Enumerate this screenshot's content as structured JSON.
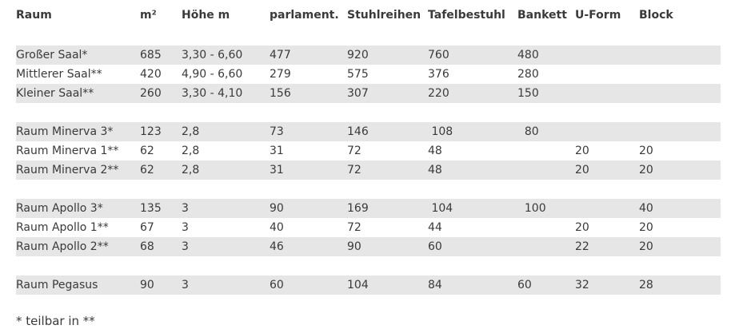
{
  "table": {
    "headers": [
      "Raum",
      "m²",
      "Höhe m",
      "parlament.",
      "Stuhlreihen",
      "Tafelbestuhl",
      "Bankett",
      "U-Form",
      "Block"
    ],
    "rows": [
      {
        "shade": "white",
        "cells": [
          "",
          "",
          "",
          "",
          "",
          "",
          "",
          "",
          ""
        ]
      },
      {
        "shade": "gray",
        "cells": [
          "Großer Saal*",
          "685",
          "3,30 - 6,60",
          "477",
          "920",
          "760",
          "480",
          "",
          ""
        ]
      },
      {
        "shade": "white",
        "cells": [
          "Mittlerer Saal**",
          "420",
          "4,90 - 6,60",
          "279",
          "575",
          "376",
          "280",
          "",
          ""
        ]
      },
      {
        "shade": "gray",
        "cells": [
          "Kleiner Saal**",
          "260",
          "3,30 - 4,10",
          "156",
          "307",
          "220",
          "150",
          "",
          ""
        ]
      },
      {
        "shade": "white",
        "cells": [
          "",
          "",
          "",
          "",
          "",
          "",
          "",
          "",
          ""
        ]
      },
      {
        "shade": "gray",
        "cells": [
          "Raum Minerva 3*",
          "123",
          "2,8",
          "73",
          "146",
          " 108",
          "  80",
          "",
          ""
        ]
      },
      {
        "shade": "white",
        "cells": [
          "Raum Minerva 1**",
          "62",
          "2,8",
          "31",
          "72",
          "48",
          "",
          "20",
          "20"
        ]
      },
      {
        "shade": "gray",
        "cells": [
          "Raum Minerva 2**",
          "62",
          "2,8",
          "31",
          "72",
          "48",
          "",
          "20",
          "20"
        ]
      },
      {
        "shade": "white",
        "cells": [
          "",
          "",
          "",
          "",
          "",
          "",
          "",
          "",
          ""
        ]
      },
      {
        "shade": "gray",
        "cells": [
          "Raum Apollo 3*",
          "135",
          "3",
          "90",
          "169",
          " 104",
          "  100",
          "",
          "40"
        ]
      },
      {
        "shade": "white",
        "cells": [
          "Raum Apollo 1**",
          "67",
          "3",
          "40",
          "72",
          "44",
          "",
          "20",
          "20"
        ]
      },
      {
        "shade": "gray",
        "cells": [
          "Raum Apollo 2**",
          "68",
          "3",
          "46",
          "90",
          "60",
          "",
          "22",
          "20"
        ]
      },
      {
        "shade": "white",
        "cells": [
          "",
          "",
          "",
          "",
          "",
          "",
          "",
          "",
          ""
        ]
      },
      {
        "shade": "gray",
        "cells": [
          "Raum Pegasus",
          "90",
          "3",
          "60",
          "104",
          "84",
          "60",
          "32",
          "28"
        ]
      }
    ]
  },
  "footnote": "* teilbar in **"
}
